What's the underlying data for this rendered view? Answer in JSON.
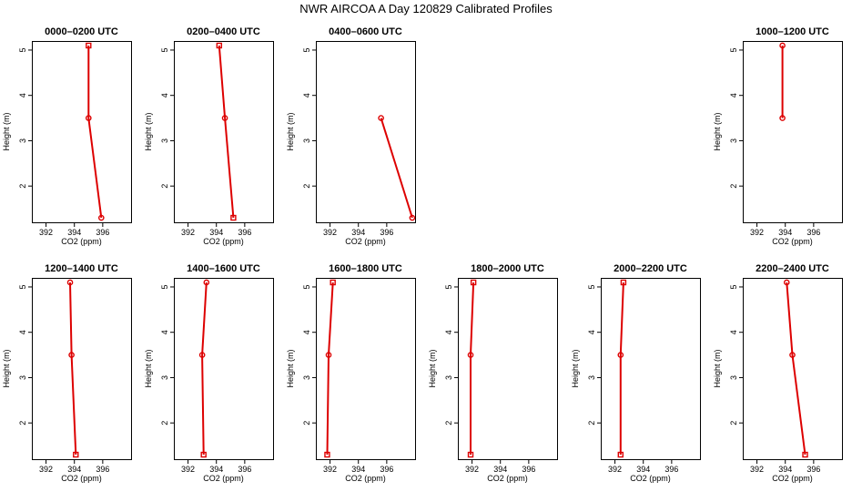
{
  "chart_data": {
    "type": "line",
    "title": "NWR AIRCOA A  Day 120829  Calibrated Profiles",
    "xlabel": "CO2 (ppm)",
    "ylabel": "Height (m)",
    "xlim": [
      391,
      398
    ],
    "ylim": [
      1.2,
      5.2
    ],
    "xticks": [
      392,
      394,
      396
    ],
    "yticks": [
      2,
      3,
      4,
      5
    ],
    "series_color": "#dd0000",
    "panels": [
      {
        "title": "0000–0200 UTC",
        "x": [
          395.0,
          395.0,
          395.9
        ],
        "y": [
          5.1,
          3.5,
          1.3
        ],
        "markers": [
          "square",
          "circle",
          "circle"
        ]
      },
      {
        "title": "0200–0400 UTC",
        "x": [
          394.2,
          394.6,
          395.2
        ],
        "y": [
          5.1,
          3.5,
          1.3
        ],
        "markers": [
          "square",
          "circle",
          "square"
        ]
      },
      {
        "title": "0400–0600 UTC",
        "x": [
          395.6,
          397.8
        ],
        "y": [
          3.5,
          1.3
        ],
        "markers": [
          "circle",
          "circle"
        ]
      },
      null,
      null,
      {
        "title": "1000–1200 UTC",
        "x": [
          393.8,
          393.8
        ],
        "y": [
          5.1,
          3.5
        ],
        "markers": [
          "circle",
          "circle"
        ]
      },
      {
        "title": "1200–1400 UTC",
        "x": [
          393.7,
          393.8,
          394.1
        ],
        "y": [
          5.1,
          3.5,
          1.3
        ],
        "markers": [
          "circle",
          "circle",
          "square"
        ]
      },
      {
        "title": "1400–1600 UTC",
        "x": [
          393.3,
          393.0,
          393.1
        ],
        "y": [
          5.1,
          3.5,
          1.3
        ],
        "markers": [
          "circle",
          "circle",
          "square"
        ]
      },
      {
        "title": "1600–1800 UTC",
        "x": [
          392.2,
          391.9,
          391.8
        ],
        "y": [
          5.1,
          3.5,
          1.3
        ],
        "markers": [
          "square",
          "circle",
          "square"
        ]
      },
      {
        "title": "1800–2000 UTC",
        "x": [
          392.1,
          391.9,
          391.9
        ],
        "y": [
          5.1,
          3.5,
          1.3
        ],
        "markers": [
          "square",
          "circle",
          "square"
        ]
      },
      {
        "title": "2000–2200 UTC",
        "x": [
          392.6,
          392.4,
          392.4
        ],
        "y": [
          5.1,
          3.5,
          1.3
        ],
        "markers": [
          "square",
          "circle",
          "square"
        ]
      },
      {
        "title": "2200–2400 UTC",
        "x": [
          394.1,
          394.5,
          395.4
        ],
        "y": [
          5.1,
          3.5,
          1.3
        ],
        "markers": [
          "circle",
          "circle",
          "square"
        ]
      }
    ]
  }
}
